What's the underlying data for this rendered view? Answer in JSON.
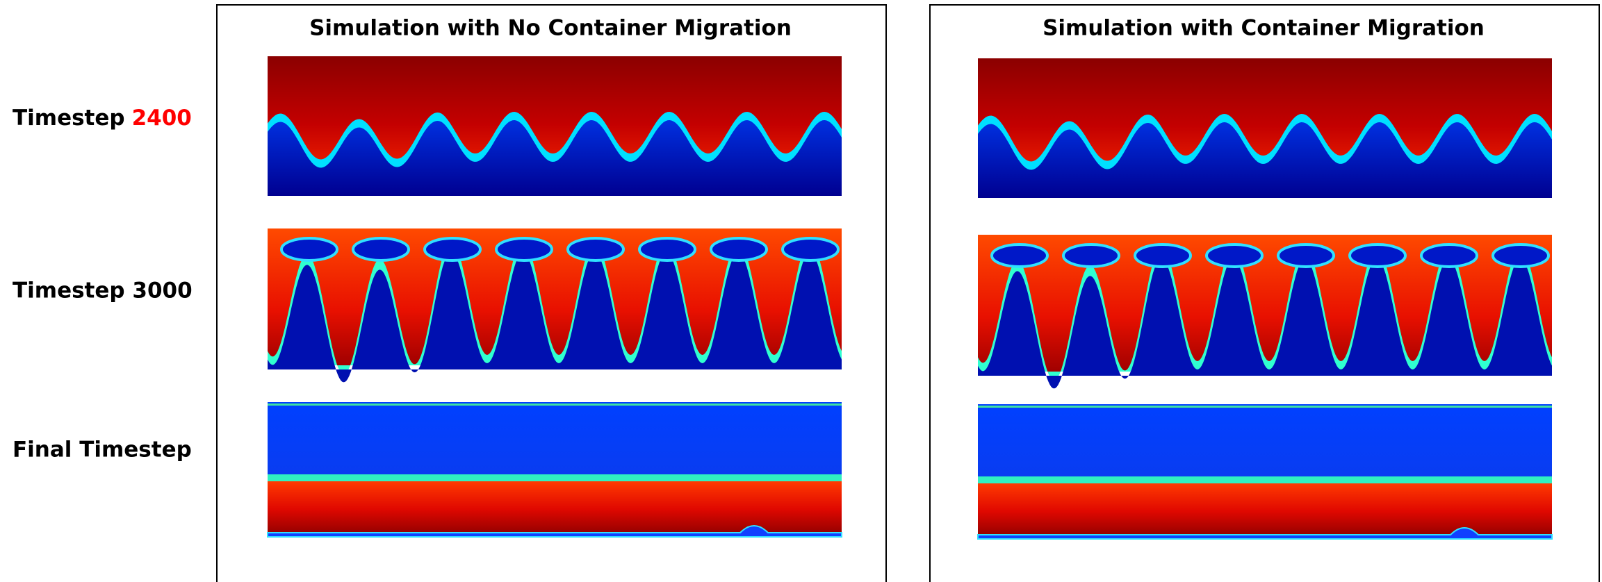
{
  "panels": [
    {
      "title": "Simulation with No Container Migration"
    },
    {
      "title": "Simulation with Container Migration"
    }
  ],
  "rows": [
    {
      "label": "Timestep",
      "highlight": "2400"
    },
    {
      "label": "Timestep 3000"
    },
    {
      "label": "Final Timestep"
    }
  ]
}
